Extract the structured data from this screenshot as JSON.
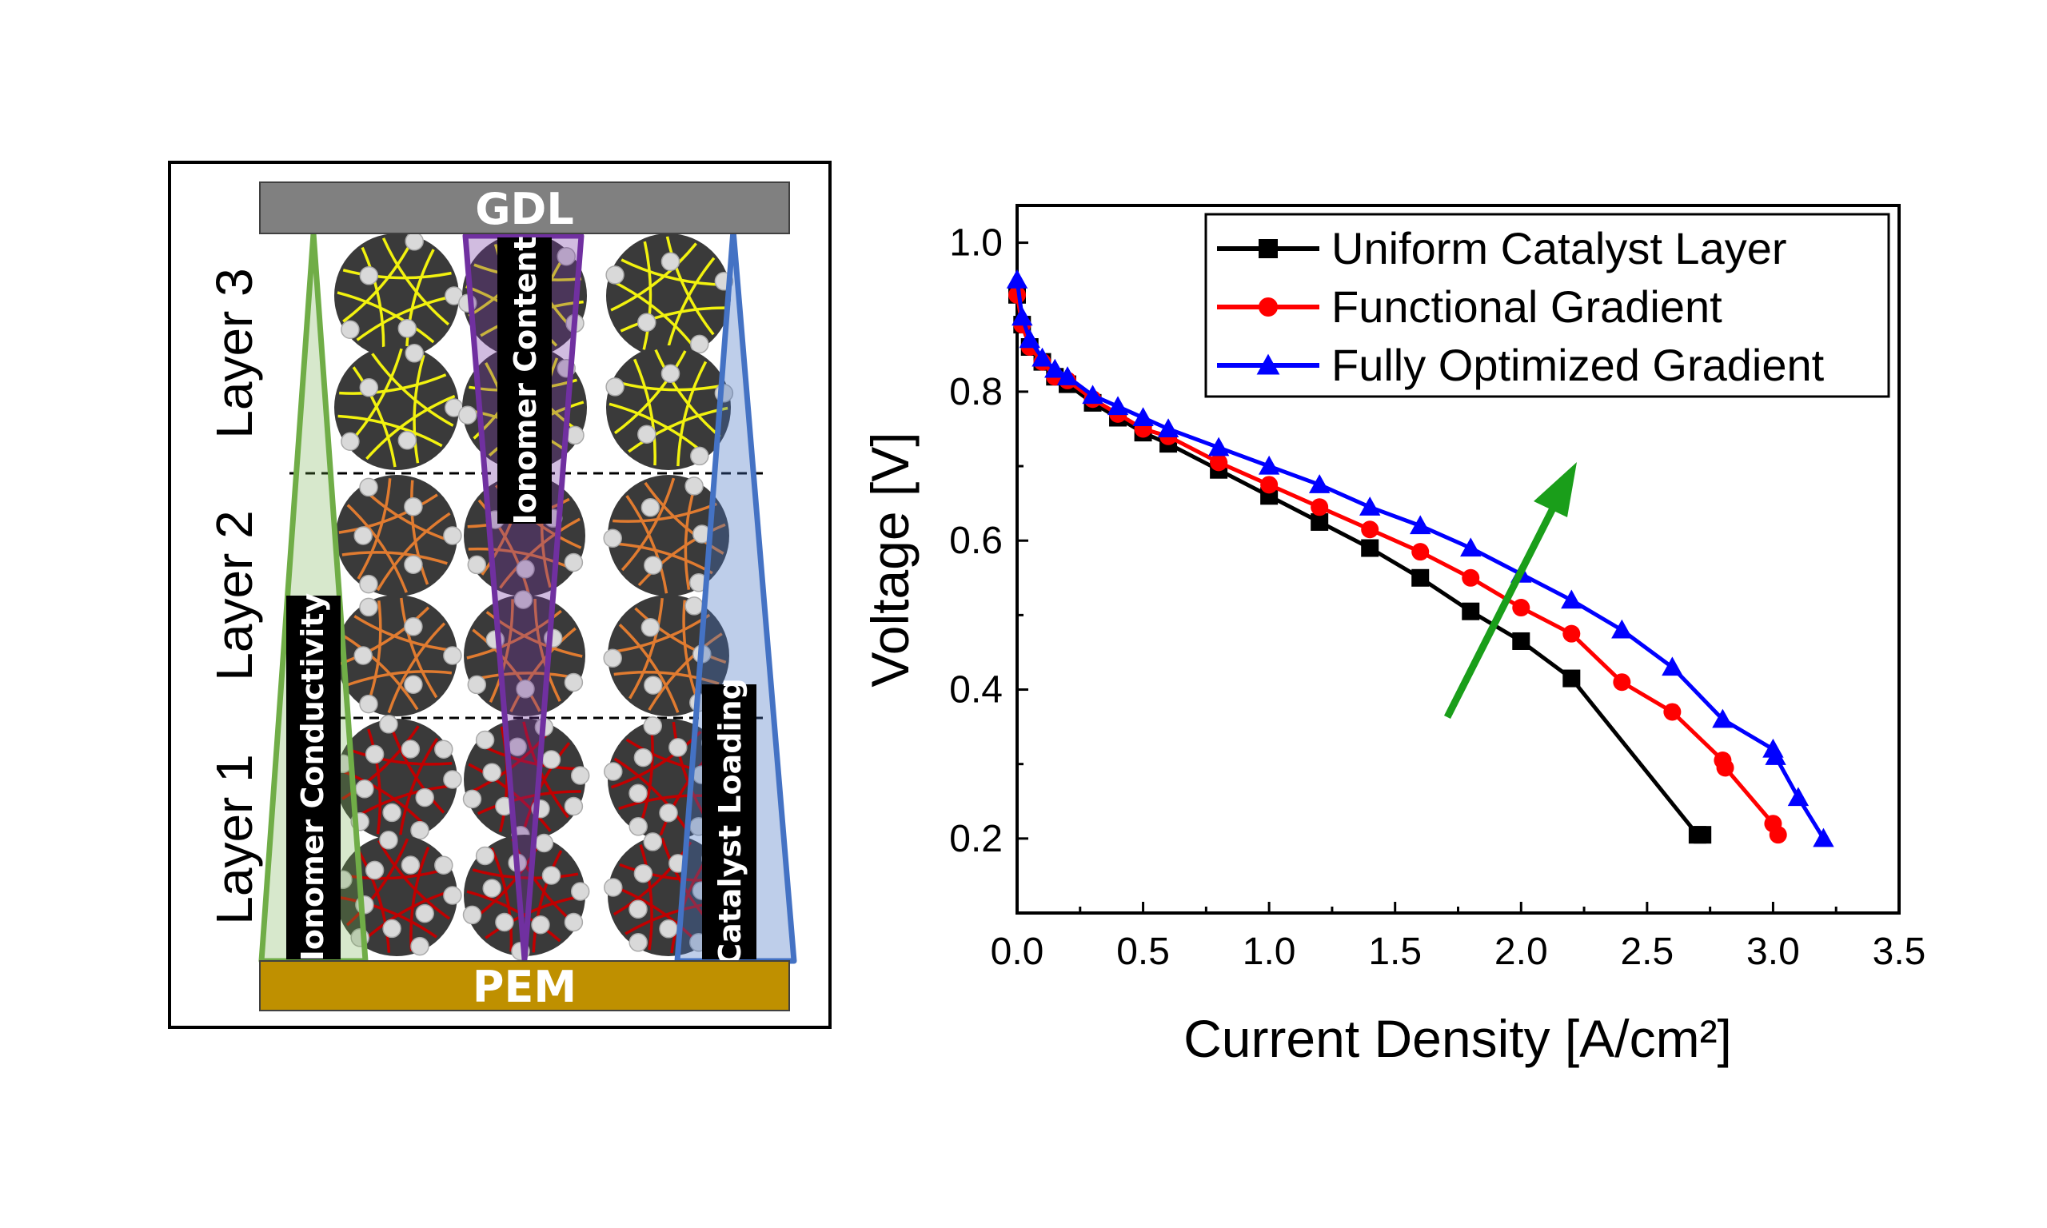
{
  "schematic": {
    "gdl_label": "GDL",
    "pem_label": "PEM",
    "layer_labels": [
      "Layer 3",
      "Layer 2",
      "Layer 1"
    ],
    "ionomer_conductivity_label": "Ionomer Conductivity",
    "ionomer_content_label": "Ionomer Content",
    "catalyst_loading_label": "Catalyst Loading",
    "colors": {
      "gdl": "#808080",
      "pem": "#bf9000",
      "layer3_ionomer": "#f2f20f",
      "layer2_ionomer": "#e07b30",
      "layer1_ionomer": "#c00000",
      "green_wedge": "#70ad47",
      "purple_wedge": "#7030a0",
      "blue_wedge": "#4472c4"
    }
  },
  "chart_data": {
    "type": "line",
    "xlabel": "Current Density [A/cm²]",
    "ylabel": "Voltage [V]",
    "xlim": [
      0,
      3.5
    ],
    "ylim": [
      0.1,
      1.05
    ],
    "xticks": [
      "0.0",
      "0.5",
      "1.0",
      "1.5",
      "2.0",
      "2.5",
      "3.0",
      "3.5"
    ],
    "yticks": [
      "0.2",
      "0.4",
      "0.6",
      "0.8",
      "1.0"
    ],
    "legend_position": "top-right",
    "annotation": "green arrow indicating improvement toward higher voltage",
    "series": [
      {
        "name": "Uniform Catalyst Layer",
        "color": "#000000",
        "marker": "square",
        "x": [
          0,
          0.02,
          0.05,
          0.1,
          0.15,
          0.2,
          0.3,
          0.4,
          0.5,
          0.6,
          0.8,
          1.0,
          1.2,
          1.4,
          1.6,
          1.8,
          2.0,
          2.2,
          2.7,
          2.72
        ],
        "y": [
          0.93,
          0.89,
          0.86,
          0.84,
          0.82,
          0.81,
          0.785,
          0.765,
          0.745,
          0.73,
          0.695,
          0.66,
          0.625,
          0.59,
          0.55,
          0.505,
          0.465,
          0.415,
          0.205,
          0.205
        ]
      },
      {
        "name": "Functional Gradient",
        "color": "#ff0000",
        "marker": "circle",
        "x": [
          0,
          0.02,
          0.05,
          0.1,
          0.15,
          0.2,
          0.3,
          0.4,
          0.5,
          0.6,
          0.8,
          1.0,
          1.2,
          1.4,
          1.6,
          1.8,
          2.0,
          2.2,
          2.4,
          2.6,
          2.8,
          2.81,
          3.0,
          3.02
        ],
        "y": [
          0.93,
          0.89,
          0.86,
          0.84,
          0.82,
          0.815,
          0.79,
          0.77,
          0.75,
          0.74,
          0.705,
          0.675,
          0.645,
          0.615,
          0.585,
          0.55,
          0.51,
          0.475,
          0.41,
          0.37,
          0.305,
          0.295,
          0.22,
          0.205
        ]
      },
      {
        "name": "Fully Optimized Gradient",
        "color": "#0000ff",
        "marker": "triangle",
        "x": [
          0,
          0.02,
          0.05,
          0.1,
          0.15,
          0.2,
          0.3,
          0.4,
          0.5,
          0.6,
          0.8,
          1.0,
          1.2,
          1.4,
          1.6,
          1.8,
          2.0,
          2.2,
          2.4,
          2.6,
          2.8,
          3.0,
          3.01,
          3.1,
          3.2
        ],
        "y": [
          0.95,
          0.9,
          0.87,
          0.845,
          0.83,
          0.82,
          0.795,
          0.78,
          0.765,
          0.75,
          0.725,
          0.7,
          0.675,
          0.645,
          0.62,
          0.59,
          0.555,
          0.52,
          0.48,
          0.43,
          0.36,
          0.32,
          0.31,
          0.255,
          0.2
        ]
      }
    ]
  }
}
